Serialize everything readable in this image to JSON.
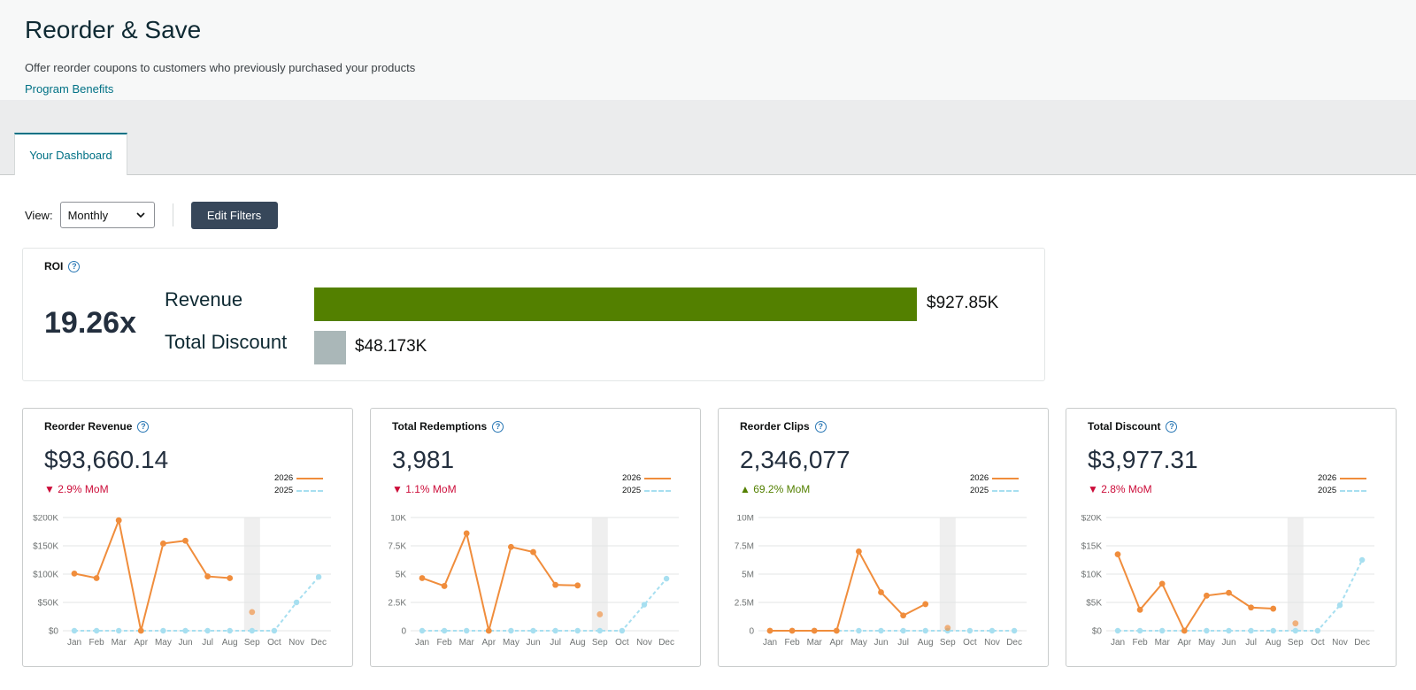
{
  "header": {
    "title": "Reorder & Save",
    "subtitle": "Offer reorder coupons to customers who previously purchased your products",
    "benefits_link": "Program Benefits"
  },
  "tabs": [
    {
      "label": "Your Dashboard"
    }
  ],
  "toolbar": {
    "view_label": "View:",
    "view_value": "Monthly",
    "edit_filters": "Edit Filters"
  },
  "roi": {
    "label": "ROI",
    "value": "19.26x",
    "revenue_label": "Revenue",
    "revenue_amount": "$927.85K",
    "revenue_value": 927.85,
    "discount_label": "Total Discount",
    "discount_amount": "$48.173K",
    "discount_value": 48.173,
    "colors": {
      "revenue": "#538000",
      "discount": "#aab7b8"
    }
  },
  "legend": {
    "current": "2026",
    "previous": "2025"
  },
  "colors": {
    "series_2026": "#f08d3c",
    "series_2025": "#a7dff0",
    "down": "#cc0c39",
    "up": "#538000",
    "link": "#007185"
  },
  "icons": {
    "help": "help-circle-icon",
    "select": "chevron-down-icon",
    "down": "triangle-down-icon",
    "up": "triangle-up-icon"
  },
  "cards": [
    {
      "title": "Reorder Revenue",
      "value": "$93,660.14",
      "delta": "2.9% MoM",
      "direction": "down",
      "arrow": "▼"
    },
    {
      "title": "Total Redemptions",
      "value": "3,981",
      "delta": "1.1% MoM",
      "direction": "down",
      "arrow": "▼"
    },
    {
      "title": "Reorder Clips",
      "value": "2,346,077",
      "delta": "69.2% MoM",
      "direction": "up",
      "arrow": "▲"
    },
    {
      "title": "Total Discount",
      "value": "$3,977.31",
      "delta": "2.8% MoM",
      "direction": "down",
      "arrow": "▼"
    }
  ],
  "chart_data": [
    {
      "type": "line",
      "categories": [
        "Jan",
        "Feb",
        "Mar",
        "Apr",
        "May",
        "Jun",
        "Jul",
        "Aug",
        "Sep",
        "Oct",
        "Nov",
        "Dec"
      ],
      "ylim": [
        0,
        200000
      ],
      "yticks": [
        0,
        50000,
        100000,
        150000,
        200000
      ],
      "ytick_labels": [
        "$0",
        "$50K",
        "$100K",
        "$150K",
        "$200K"
      ],
      "highlight_category": "Sep",
      "series": [
        {
          "name": "2026",
          "values": [
            101000,
            93000,
            195000,
            0,
            154000,
            159000,
            96000,
            93000,
            null,
            null,
            null,
            null
          ],
          "partial": {
            "category": "Sep",
            "value": 33000
          }
        },
        {
          "name": "2025",
          "values": [
            0,
            0,
            0,
            0,
            0,
            0,
            0,
            0,
            0,
            0,
            50000,
            95000
          ]
        }
      ]
    },
    {
      "type": "line",
      "categories": [
        "Jan",
        "Feb",
        "Mar",
        "Apr",
        "May",
        "Jun",
        "Jul",
        "Aug",
        "Sep",
        "Oct",
        "Nov",
        "Dec"
      ],
      "ylim": [
        0,
        10000
      ],
      "yticks": [
        0,
        2500,
        5000,
        7500,
        10000
      ],
      "ytick_labels": [
        "0",
        "2.5K",
        "5K",
        "7.5K",
        "10K"
      ],
      "highlight_category": "Sep",
      "series": [
        {
          "name": "2026",
          "values": [
            4650,
            3950,
            8600,
            0,
            7400,
            6950,
            4050,
            4000,
            null,
            null,
            null,
            null
          ],
          "partial": {
            "category": "Sep",
            "value": 1450
          }
        },
        {
          "name": "2025",
          "values": [
            0,
            0,
            0,
            0,
            0,
            0,
            0,
            0,
            0,
            0,
            2300,
            4600
          ]
        }
      ]
    },
    {
      "type": "line",
      "categories": [
        "Jan",
        "Feb",
        "Mar",
        "Apr",
        "May",
        "Jun",
        "Jul",
        "Aug",
        "Sep",
        "Oct",
        "Nov",
        "Dec"
      ],
      "ylim": [
        0,
        10000000
      ],
      "yticks": [
        0,
        2500000,
        5000000,
        7500000,
        10000000
      ],
      "ytick_labels": [
        "0",
        "2.5M",
        "5M",
        "7.5M",
        "10M"
      ],
      "highlight_category": "Sep",
      "series": [
        {
          "name": "2026",
          "values": [
            0,
            0,
            0,
            0,
            7000000,
            3400000,
            1350000,
            2350000,
            null,
            null,
            null,
            null
          ],
          "partial": {
            "category": "Sep",
            "value": 250000
          }
        },
        {
          "name": "2025",
          "values": [
            0,
            0,
            0,
            0,
            0,
            0,
            0,
            0,
            0,
            0,
            0,
            0
          ]
        }
      ]
    },
    {
      "type": "line",
      "categories": [
        "Jan",
        "Feb",
        "Mar",
        "Apr",
        "May",
        "Jun",
        "Jul",
        "Aug",
        "Sep",
        "Oct",
        "Nov",
        "Dec"
      ],
      "ylim": [
        0,
        20000
      ],
      "yticks": [
        0,
        5000,
        10000,
        15000,
        20000
      ],
      "ytick_labels": [
        "$0",
        "$5K",
        "$10K",
        "$15K",
        "$20K"
      ],
      "highlight_category": "Sep",
      "series": [
        {
          "name": "2026",
          "values": [
            13500,
            3700,
            8300,
            0,
            6200,
            6700,
            4100,
            3900,
            null,
            null,
            null,
            null
          ],
          "partial": {
            "category": "Sep",
            "value": 1300
          }
        },
        {
          "name": "2025",
          "values": [
            0,
            0,
            0,
            0,
            0,
            0,
            0,
            0,
            0,
            0,
            4500,
            12500
          ]
        }
      ]
    }
  ]
}
